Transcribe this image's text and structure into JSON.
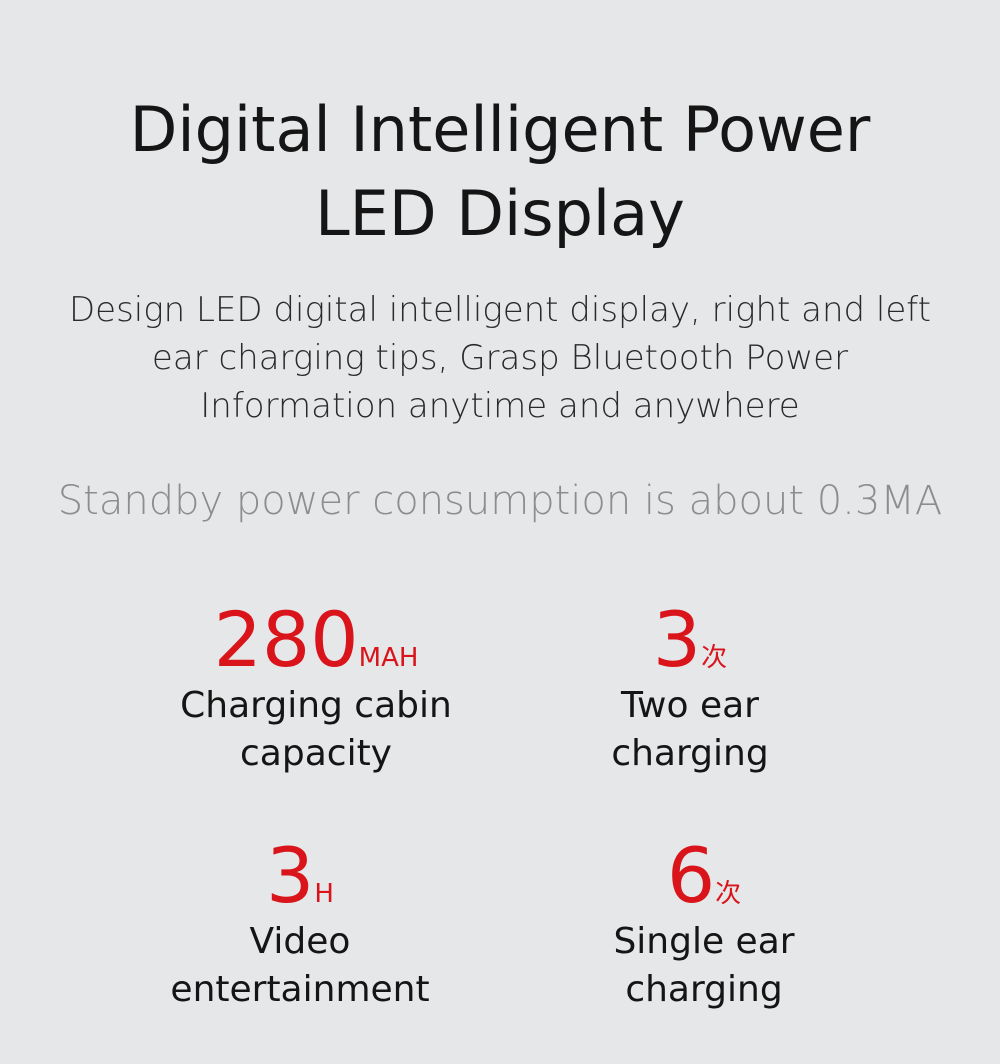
{
  "title_lines": [
    "Digital Intelligent Power",
    "LED Display"
  ],
  "description_lines": [
    "Design LED digital intelligent display, right and left",
    "ear charging tips, Grasp Bluetooth Power",
    "Information anytime and anywhere"
  ],
  "standby": "Standby power consumption is about 0.3MA",
  "accent_color": "#d9151b",
  "stats": [
    {
      "value": "280",
      "unit": "MAH",
      "label_lines": [
        "Charging cabin",
        "capacity"
      ]
    },
    {
      "value": "3",
      "unit": "次",
      "label_lines": [
        "Two ear",
        "charging"
      ]
    },
    {
      "value": "3",
      "unit": "H",
      "label_lines": [
        "Video",
        "entertainment"
      ]
    },
    {
      "value": "6",
      "unit": "次",
      "label_lines": [
        "Single ear",
        "charging"
      ]
    }
  ]
}
